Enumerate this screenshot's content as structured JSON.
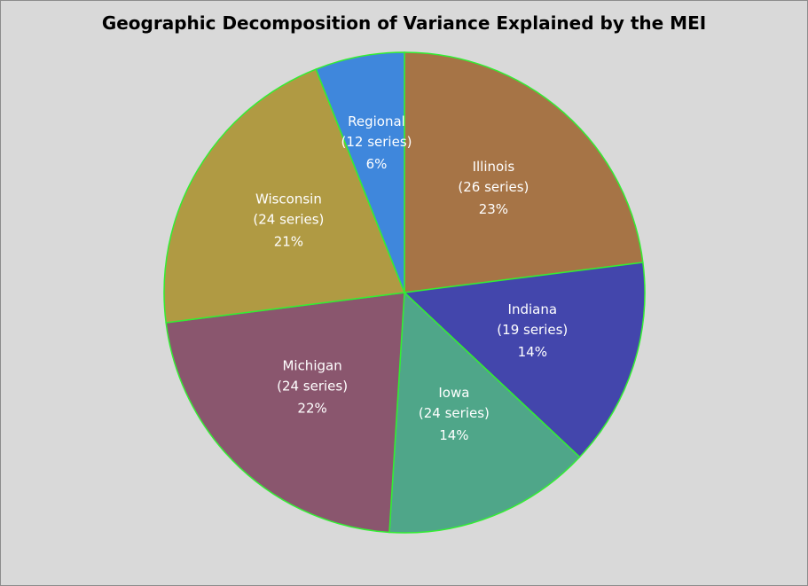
{
  "chart_data": {
    "type": "pie",
    "title": "Geographic Decomposition of Variance Explained by the MEI",
    "start_angle_deg": 0,
    "direction": "clockwise",
    "border_color": "#33ee33",
    "background": "#d9d9d9",
    "slices": [
      {
        "name": "Illinois",
        "series_label": "(26 series)",
        "value": 23,
        "percent_label": "23%",
        "color": "#a67446"
      },
      {
        "name": "Indiana",
        "series_label": "(19 series)",
        "value": 14,
        "percent_label": "14%",
        "color": "#4346ac"
      },
      {
        "name": "Iowa",
        "series_label": "(24 series)",
        "value": 14,
        "percent_label": "14%",
        "color": "#4fa689"
      },
      {
        "name": "Michigan",
        "series_label": "(24 series)",
        "value": 22,
        "percent_label": "22%",
        "color": "#8a566e"
      },
      {
        "name": "Wisconsin",
        "series_label": "(24 series)",
        "value": 21,
        "percent_label": "21%",
        "color": "#b09a43"
      },
      {
        "name": "Regional",
        "series_label": "(12 series)",
        "value": 6,
        "percent_label": "6%",
        "color": "#3f87dc"
      }
    ]
  }
}
